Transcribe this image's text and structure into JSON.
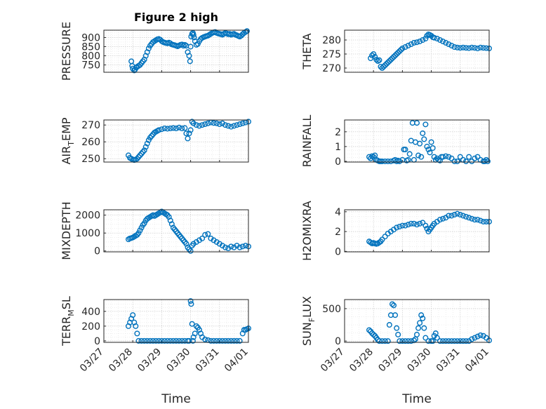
{
  "figure": {
    "title": "Figure 2 high",
    "x_label": "Time",
    "x_ticks": [
      "03/27",
      "03/28",
      "03/29",
      "03/30",
      "03/31",
      "04/01"
    ],
    "marker_color": "#0072bd"
  },
  "chart_data": [
    {
      "type": "scatter",
      "title": "Figure 2 high",
      "xlabel": "Time",
      "ylabel": "PRESSURE",
      "xlim": [
        0,
        5
      ],
      "ylim": [
        710,
        940
      ],
      "yticks": [
        750,
        800,
        850,
        900
      ],
      "x": [
        0.95,
        0.98,
        1.0,
        1.05,
        1.08,
        1.12,
        1.15,
        1.2,
        1.25,
        1.3,
        1.35,
        1.4,
        1.45,
        1.5,
        1.55,
        1.6,
        1.65,
        1.7,
        1.75,
        1.8,
        1.85,
        1.9,
        1.95,
        2.0,
        2.05,
        2.1,
        2.15,
        2.2,
        2.25,
        2.3,
        2.35,
        2.4,
        2.45,
        2.5,
        2.55,
        2.6,
        2.65,
        2.7,
        2.75,
        2.8,
        2.85,
        2.9,
        2.95,
        2.98,
        3.0,
        3.02,
        3.05,
        3.08,
        3.1,
        3.12,
        3.15,
        3.2,
        3.25,
        3.3,
        3.35,
        3.4,
        3.45,
        3.5,
        3.55,
        3.6,
        3.65,
        3.7,
        3.75,
        3.8,
        3.85,
        3.9,
        3.95,
        4.0,
        4.05,
        4.1,
        4.15,
        4.2,
        4.25,
        4.3,
        4.35,
        4.4,
        4.45,
        4.5,
        4.55,
        4.6,
        4.65,
        4.7,
        4.75,
        4.8,
        4.85,
        4.9,
        4.95
      ],
      "y": [
        770,
        745,
        730,
        720,
        725,
        735,
        740,
        745,
        750,
        760,
        770,
        780,
        800,
        820,
        840,
        855,
        865,
        875,
        880,
        885,
        890,
        892,
        888,
        880,
        875,
        872,
        870,
        868,
        872,
        868,
        862,
        860,
        858,
        855,
        852,
        856,
        860,
        862,
        855,
        860,
        855,
        820,
        800,
        770,
        850,
        905,
        920,
        925,
        915,
        900,
        880,
        860,
        865,
        880,
        892,
        898,
        902,
        905,
        908,
        910,
        915,
        920,
        925,
        928,
        930,
        925,
        922,
        920,
        918,
        915,
        920,
        925,
        922,
        918,
        920,
        915,
        918,
        920,
        915,
        912,
        908,
        905,
        910,
        918,
        925,
        930,
        935
      ]
    },
    {
      "type": "scatter",
      "xlabel": "Time",
      "ylabel": "THETA",
      "xlim": [
        0,
        5
      ],
      "ylim": [
        268.5,
        283.5
      ],
      "yticks": [
        270,
        275,
        280
      ],
      "x": [
        0.9,
        0.95,
        1.0,
        1.05,
        1.1,
        1.15,
        1.2,
        1.25,
        1.3,
        1.35,
        1.4,
        1.45,
        1.5,
        1.55,
        1.6,
        1.65,
        1.7,
        1.75,
        1.8,
        1.85,
        1.9,
        1.95,
        2.0,
        2.1,
        2.2,
        2.3,
        2.4,
        2.5,
        2.6,
        2.7,
        2.8,
        2.85,
        2.9,
        2.95,
        3.0,
        3.05,
        3.1,
        3.2,
        3.3,
        3.4,
        3.5,
        3.6,
        3.7,
        3.8,
        3.9,
        4.0,
        4.1,
        4.2,
        4.3,
        4.4,
        4.5,
        4.6,
        4.7,
        4.8,
        4.9,
        5.0
      ],
      "y": [
        273.5,
        274.5,
        275,
        274,
        273,
        272.5,
        272.8,
        270.5,
        270,
        270.5,
        271,
        271.5,
        272,
        272.5,
        273,
        273.5,
        274,
        274.5,
        275,
        275.5,
        276,
        276.5,
        277,
        277.5,
        278,
        278.5,
        279,
        279.2,
        279.5,
        280,
        280.5,
        281.5,
        282,
        281.8,
        281.5,
        281,
        280.8,
        280.5,
        280,
        279.5,
        279,
        278.5,
        278,
        277.5,
        277.3,
        277.2,
        277.3,
        277.2,
        277.1,
        277.3,
        277.2,
        277,
        277.3,
        277.2,
        277.1,
        277
      ]
    },
    {
      "type": "scatter",
      "xlabel": "Time",
      "ylabel": "AIR_TEMP",
      "xlim": [
        0,
        5
      ],
      "ylim": [
        248,
        273
      ],
      "yticks": [
        250,
        260,
        270
      ],
      "x": [
        0.85,
        0.9,
        0.95,
        1.0,
        1.05,
        1.1,
        1.15,
        1.2,
        1.25,
        1.3,
        1.35,
        1.4,
        1.45,
        1.5,
        1.55,
        1.6,
        1.65,
        1.7,
        1.75,
        1.8,
        1.85,
        1.9,
        2.0,
        2.1,
        2.2,
        2.3,
        2.4,
        2.5,
        2.6,
        2.7,
        2.8,
        2.85,
        2.9,
        2.95,
        3.0,
        3.05,
        3.1,
        3.2,
        3.3,
        3.4,
        3.5,
        3.6,
        3.7,
        3.8,
        3.9,
        4.0,
        4.1,
        4.2,
        4.3,
        4.4,
        4.5,
        4.6,
        4.7,
        4.8,
        4.9,
        5.0
      ],
      "y": [
        252,
        250.5,
        250,
        249.5,
        249.2,
        249.5,
        250,
        251,
        252,
        253,
        254,
        255,
        257,
        259,
        261,
        262.5,
        263.5,
        264.5,
        265.5,
        266,
        266.5,
        267,
        267.5,
        268,
        267.8,
        268,
        268.2,
        268,
        268.5,
        268,
        268.2,
        265,
        262,
        265,
        267,
        272,
        271,
        270,
        269.5,
        270,
        270.5,
        271,
        271.5,
        271.2,
        271,
        270.5,
        271,
        270,
        269.5,
        269,
        269.5,
        270,
        270.5,
        271,
        271.5,
        272
      ]
    },
    {
      "type": "scatter",
      "xlabel": "Time",
      "ylabel": "RAINFALL",
      "xlim": [
        0,
        5
      ],
      "ylim": [
        -0.05,
        2.8
      ],
      "yticks": [
        0,
        1,
        2
      ],
      "x": [
        0.85,
        0.9,
        0.95,
        1.0,
        1.05,
        1.1,
        1.15,
        1.2,
        1.25,
        1.3,
        1.4,
        1.5,
        1.6,
        1.7,
        1.75,
        1.8,
        1.85,
        1.9,
        2.0,
        2.05,
        2.1,
        2.15,
        2.2,
        2.25,
        2.3,
        2.35,
        2.4,
        2.45,
        2.5,
        2.55,
        2.6,
        2.65,
        2.7,
        2.75,
        2.8,
        2.85,
        2.9,
        2.95,
        3.0,
        3.05,
        3.1,
        3.15,
        3.2,
        3.25,
        3.3,
        3.35,
        3.4,
        3.5,
        3.6,
        3.7,
        3.8,
        3.9,
        4.0,
        4.1,
        4.2,
        4.3,
        4.4,
        4.5,
        4.6,
        4.7,
        4.8,
        4.85,
        4.9,
        4.95
      ],
      "y": [
        0.3,
        0.2,
        0.35,
        0.3,
        0.4,
        0.1,
        0.05,
        0,
        0,
        0,
        0,
        0,
        0,
        0.05,
        0.1,
        0,
        0.05,
        0,
        0.1,
        0.8,
        0.8,
        0.05,
        0.1,
        0.5,
        1.4,
        2.6,
        0.1,
        1.3,
        2.6,
        0.4,
        1.2,
        0.3,
        1.9,
        1.5,
        2.5,
        1.0,
        0.8,
        0.6,
        1.3,
        0.9,
        0.3,
        0.1,
        0.2,
        0.1,
        0.05,
        0.3,
        0.3,
        0.35,
        0.3,
        0.2,
        0,
        0,
        0.3,
        0.1,
        0,
        0.3,
        0,
        0.2,
        0.3,
        0.1,
        0,
        0,
        0.1,
        0
      ]
    },
    {
      "type": "scatter",
      "xlabel": "Time",
      "ylabel": "MIXDEPTH",
      "xlim": [
        0,
        5
      ],
      "ylim": [
        -50,
        2300
      ],
      "yticks": [
        0,
        1000,
        2000
      ],
      "x": [
        0.85,
        0.9,
        0.95,
        1.0,
        1.05,
        1.1,
        1.15,
        1.2,
        1.25,
        1.3,
        1.35,
        1.4,
        1.45,
        1.5,
        1.55,
        1.6,
        1.65,
        1.7,
        1.75,
        1.8,
        1.85,
        1.9,
        1.95,
        2.0,
        2.05,
        2.1,
        2.15,
        2.2,
        2.25,
        2.3,
        2.35,
        2.4,
        2.45,
        2.5,
        2.55,
        2.6,
        2.65,
        2.7,
        2.75,
        2.8,
        2.85,
        2.9,
        2.95,
        3.0,
        3.05,
        3.1,
        3.2,
        3.3,
        3.4,
        3.5,
        3.6,
        3.7,
        3.8,
        3.9,
        4.0,
        4.1,
        4.2,
        4.3,
        4.4,
        4.5,
        4.6,
        4.7,
        4.8,
        4.9,
        5.0
      ],
      "y": [
        650,
        700,
        720,
        750,
        800,
        850,
        900,
        1000,
        1150,
        1300,
        1450,
        1550,
        1700,
        1800,
        1850,
        1900,
        1950,
        2000,
        1950,
        2000,
        2050,
        2100,
        2150,
        2200,
        2150,
        2100,
        2050,
        2000,
        1900,
        1700,
        1500,
        1300,
        1200,
        1100,
        1000,
        900,
        800,
        700,
        600,
        500,
        400,
        200,
        100,
        0,
        300,
        400,
        500,
        600,
        700,
        900,
        950,
        700,
        600,
        500,
        400,
        300,
        200,
        150,
        250,
        200,
        300,
        200,
        250,
        300,
        250
      ]
    },
    {
      "type": "scatter",
      "xlabel": "Time",
      "ylabel": "H2OMIXRA",
      "xlim": [
        0,
        5
      ],
      "ylim": [
        -0.05,
        4.2
      ],
      "yticks": [
        0,
        2,
        4
      ],
      "x": [
        0.85,
        0.9,
        0.95,
        1.0,
        1.05,
        1.1,
        1.15,
        1.2,
        1.25,
        1.3,
        1.4,
        1.5,
        1.6,
        1.7,
        1.8,
        1.9,
        2.0,
        2.1,
        2.2,
        2.3,
        2.4,
        2.5,
        2.6,
        2.7,
        2.8,
        2.85,
        2.9,
        2.95,
        3.0,
        3.05,
        3.1,
        3.2,
        3.3,
        3.4,
        3.5,
        3.6,
        3.7,
        3.8,
        3.9,
        4.0,
        4.1,
        4.2,
        4.3,
        4.4,
        4.5,
        4.6,
        4.7,
        4.8,
        4.9,
        5.0
      ],
      "y": [
        1.0,
        0.9,
        0.8,
        0.85,
        0.8,
        0.75,
        0.8,
        0.9,
        1.0,
        1.2,
        1.5,
        1.8,
        2.0,
        2.2,
        2.4,
        2.5,
        2.6,
        2.6,
        2.7,
        2.8,
        2.8,
        2.7,
        2.8,
        2.9,
        2.6,
        2.3,
        2.0,
        2.2,
        2.4,
        2.6,
        2.8,
        3.0,
        3.2,
        3.3,
        3.4,
        3.6,
        3.6,
        3.7,
        3.8,
        3.7,
        3.6,
        3.5,
        3.4,
        3.3,
        3.2,
        3.2,
        3.1,
        3.0,
        3.0,
        3.0
      ]
    },
    {
      "type": "scatter",
      "xlabel": "Time",
      "ylabel": "TERR_MSL",
      "xlim": [
        0,
        5
      ],
      "ylim": [
        -20,
        560
      ],
      "yticks": [
        0,
        200,
        400
      ],
      "x": [
        0.85,
        0.9,
        0.95,
        1.0,
        1.05,
        1.1,
        1.15,
        1.2,
        1.3,
        1.4,
        1.5,
        1.6,
        1.7,
        1.8,
        1.9,
        2.0,
        2.1,
        2.2,
        2.3,
        2.4,
        2.5,
        2.6,
        2.7,
        2.8,
        2.9,
        2.95,
        3.0,
        3.02,
        3.05,
        3.08,
        3.1,
        3.15,
        3.2,
        3.25,
        3.3,
        3.35,
        3.4,
        3.5,
        3.6,
        3.7,
        3.8,
        3.9,
        4.0,
        4.1,
        4.2,
        4.3,
        4.4,
        4.5,
        4.6,
        4.7,
        4.8,
        4.85,
        4.9,
        4.95,
        5.0
      ],
      "y": [
        200,
        250,
        300,
        350,
        250,
        200,
        100,
        0,
        0,
        0,
        0,
        0,
        0,
        0,
        0,
        0,
        0,
        0,
        0,
        0,
        0,
        0,
        0,
        0,
        0,
        0,
        540,
        500,
        230,
        0,
        50,
        100,
        200,
        180,
        150,
        100,
        50,
        20,
        10,
        0,
        0,
        0,
        0,
        0,
        0,
        0,
        0,
        0,
        0,
        0,
        100,
        150,
        150,
        160,
        170
      ]
    },
    {
      "type": "scatter",
      "xlabel": "Time",
      "ylabel": "SUN_FLUX",
      "xlim": [
        0,
        5
      ],
      "ylim": [
        -20,
        640
      ],
      "yticks": [
        0,
        500
      ],
      "x": [
        0.85,
        0.9,
        0.95,
        1.0,
        1.05,
        1.1,
        1.15,
        1.2,
        1.3,
        1.4,
        1.5,
        1.55,
        1.6,
        1.65,
        1.7,
        1.75,
        1.8,
        1.85,
        1.9,
        2.0,
        2.1,
        2.2,
        2.3,
        2.4,
        2.45,
        2.5,
        2.55,
        2.6,
        2.65,
        2.7,
        2.75,
        2.8,
        2.9,
        3.0,
        3.05,
        3.1,
        3.15,
        3.2,
        3.3,
        3.4,
        3.5,
        3.6,
        3.7,
        3.8,
        3.9,
        4.0,
        4.1,
        4.2,
        4.3,
        4.4,
        4.5,
        4.6,
        4.7,
        4.8,
        4.9,
        5.0
      ],
      "y": [
        170,
        150,
        120,
        100,
        80,
        50,
        20,
        0,
        0,
        0,
        0,
        250,
        400,
        570,
        550,
        400,
        200,
        100,
        0,
        0,
        0,
        0,
        0,
        10,
        30,
        100,
        200,
        280,
        400,
        350,
        200,
        50,
        0,
        0,
        0,
        80,
        120,
        50,
        0,
        0,
        0,
        0,
        0,
        0,
        0,
        0,
        0,
        0,
        0,
        30,
        50,
        70,
        90,
        80,
        50,
        10
      ]
    }
  ]
}
